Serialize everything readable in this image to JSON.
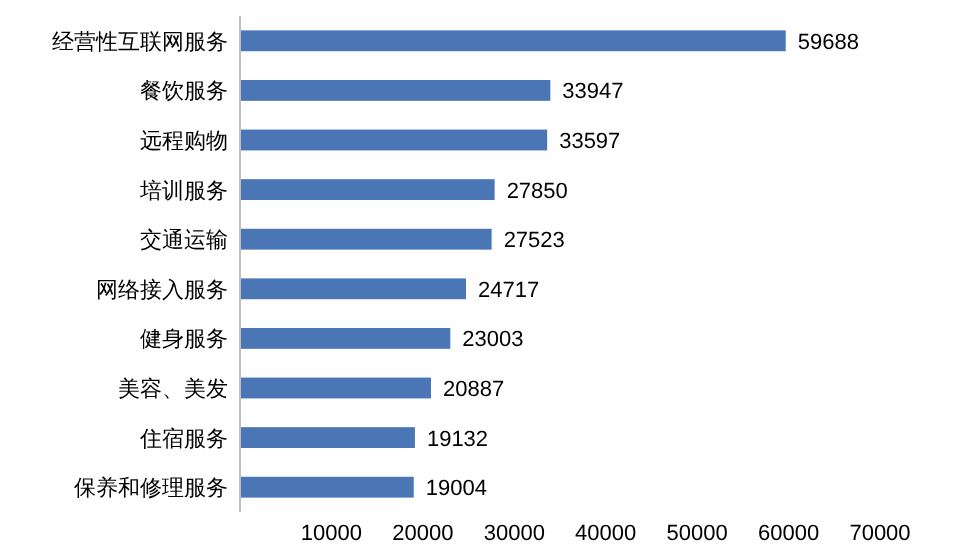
{
  "chart_data": {
    "type": "bar",
    "orientation": "horizontal",
    "categories": [
      "经营性互联网服务",
      "餐饮服务",
      "远程购物",
      "培训服务",
      "交通运输",
      "网络接入服务",
      "健身服务",
      "美容、美发",
      "住宿服务",
      "保养和修理服务"
    ],
    "values": [
      59688,
      33947,
      33597,
      27850,
      27523,
      24717,
      23003,
      20887,
      19132,
      19004
    ],
    "color": "#4a76b5",
    "xlim": [
      0,
      70000
    ],
    "xticks": [
      10000,
      20000,
      30000,
      40000,
      50000,
      60000,
      70000
    ],
    "data_labels": true,
    "grid": false
  }
}
